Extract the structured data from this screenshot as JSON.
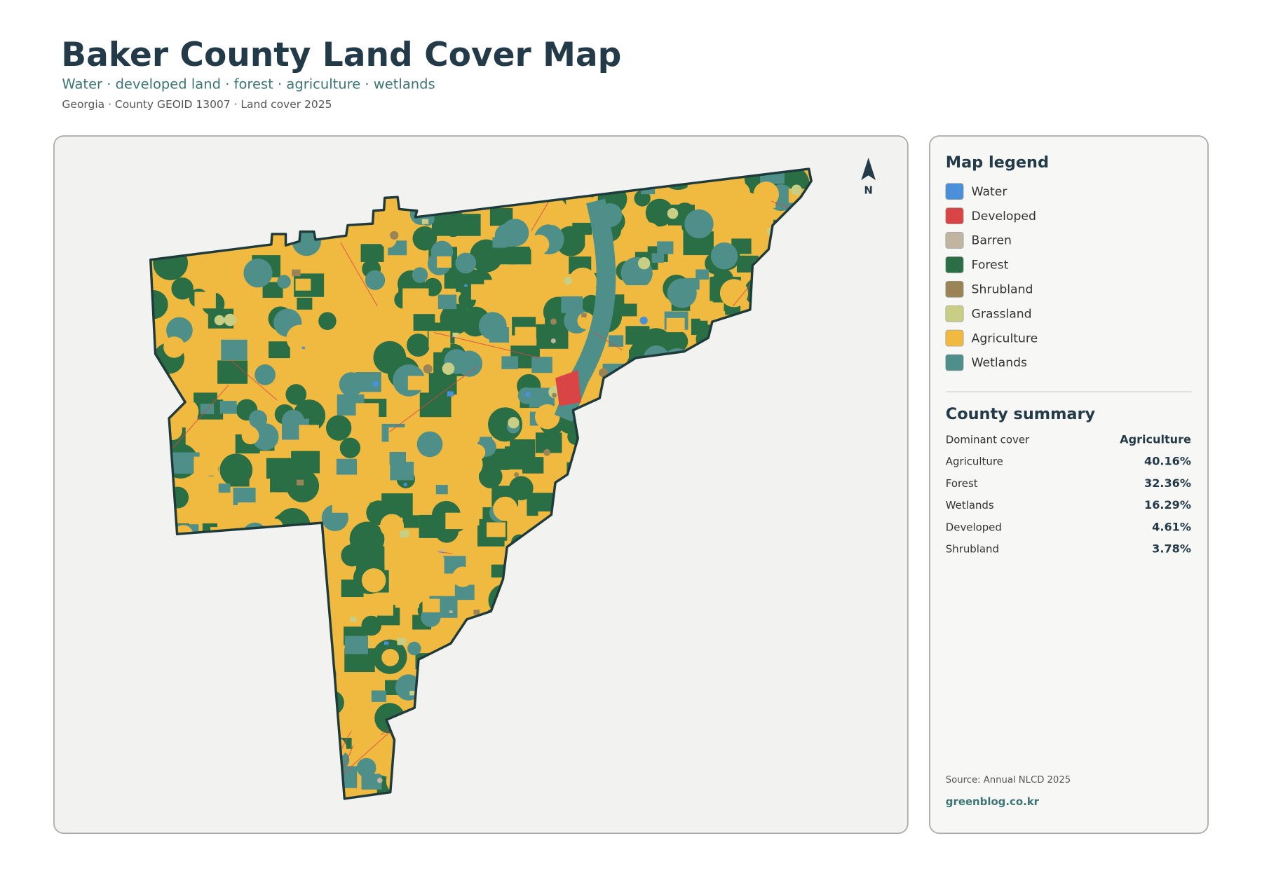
{
  "header": {
    "title": "Baker County Land Cover Map",
    "subtitle": "Water · developed land · forest · agriculture · wetlands",
    "meta": "Georgia · County GEOID 13007 · Land cover 2025"
  },
  "map": {
    "north_label": "N"
  },
  "legend": {
    "title": "Map legend",
    "items": [
      {
        "label": "Water",
        "color": "#4a90d9"
      },
      {
        "label": "Developed",
        "color": "#d94545"
      },
      {
        "label": "Barren",
        "color": "#bfb5a0"
      },
      {
        "label": "Forest",
        "color": "#2a6e45"
      },
      {
        "label": "Shrubland",
        "color": "#9a8455"
      },
      {
        "label": "Grassland",
        "color": "#c9ce85"
      },
      {
        "label": "Agriculture",
        "color": "#f0b940"
      },
      {
        "label": "Wetlands",
        "color": "#4e8f8a"
      }
    ]
  },
  "summary": {
    "title": "County summary",
    "rows": [
      {
        "label": "Dominant cover",
        "value": "Agriculture"
      },
      {
        "label": "Agriculture",
        "value": "40.16%"
      },
      {
        "label": "Forest",
        "value": "32.36%"
      },
      {
        "label": "Wetlands",
        "value": "16.29%"
      },
      {
        "label": "Developed",
        "value": "4.61%"
      },
      {
        "label": "Shrubland",
        "value": "3.78%"
      }
    ]
  },
  "footer": {
    "source": "Source: Annual NLCD 2025",
    "site": "greenblog.co.kr"
  }
}
